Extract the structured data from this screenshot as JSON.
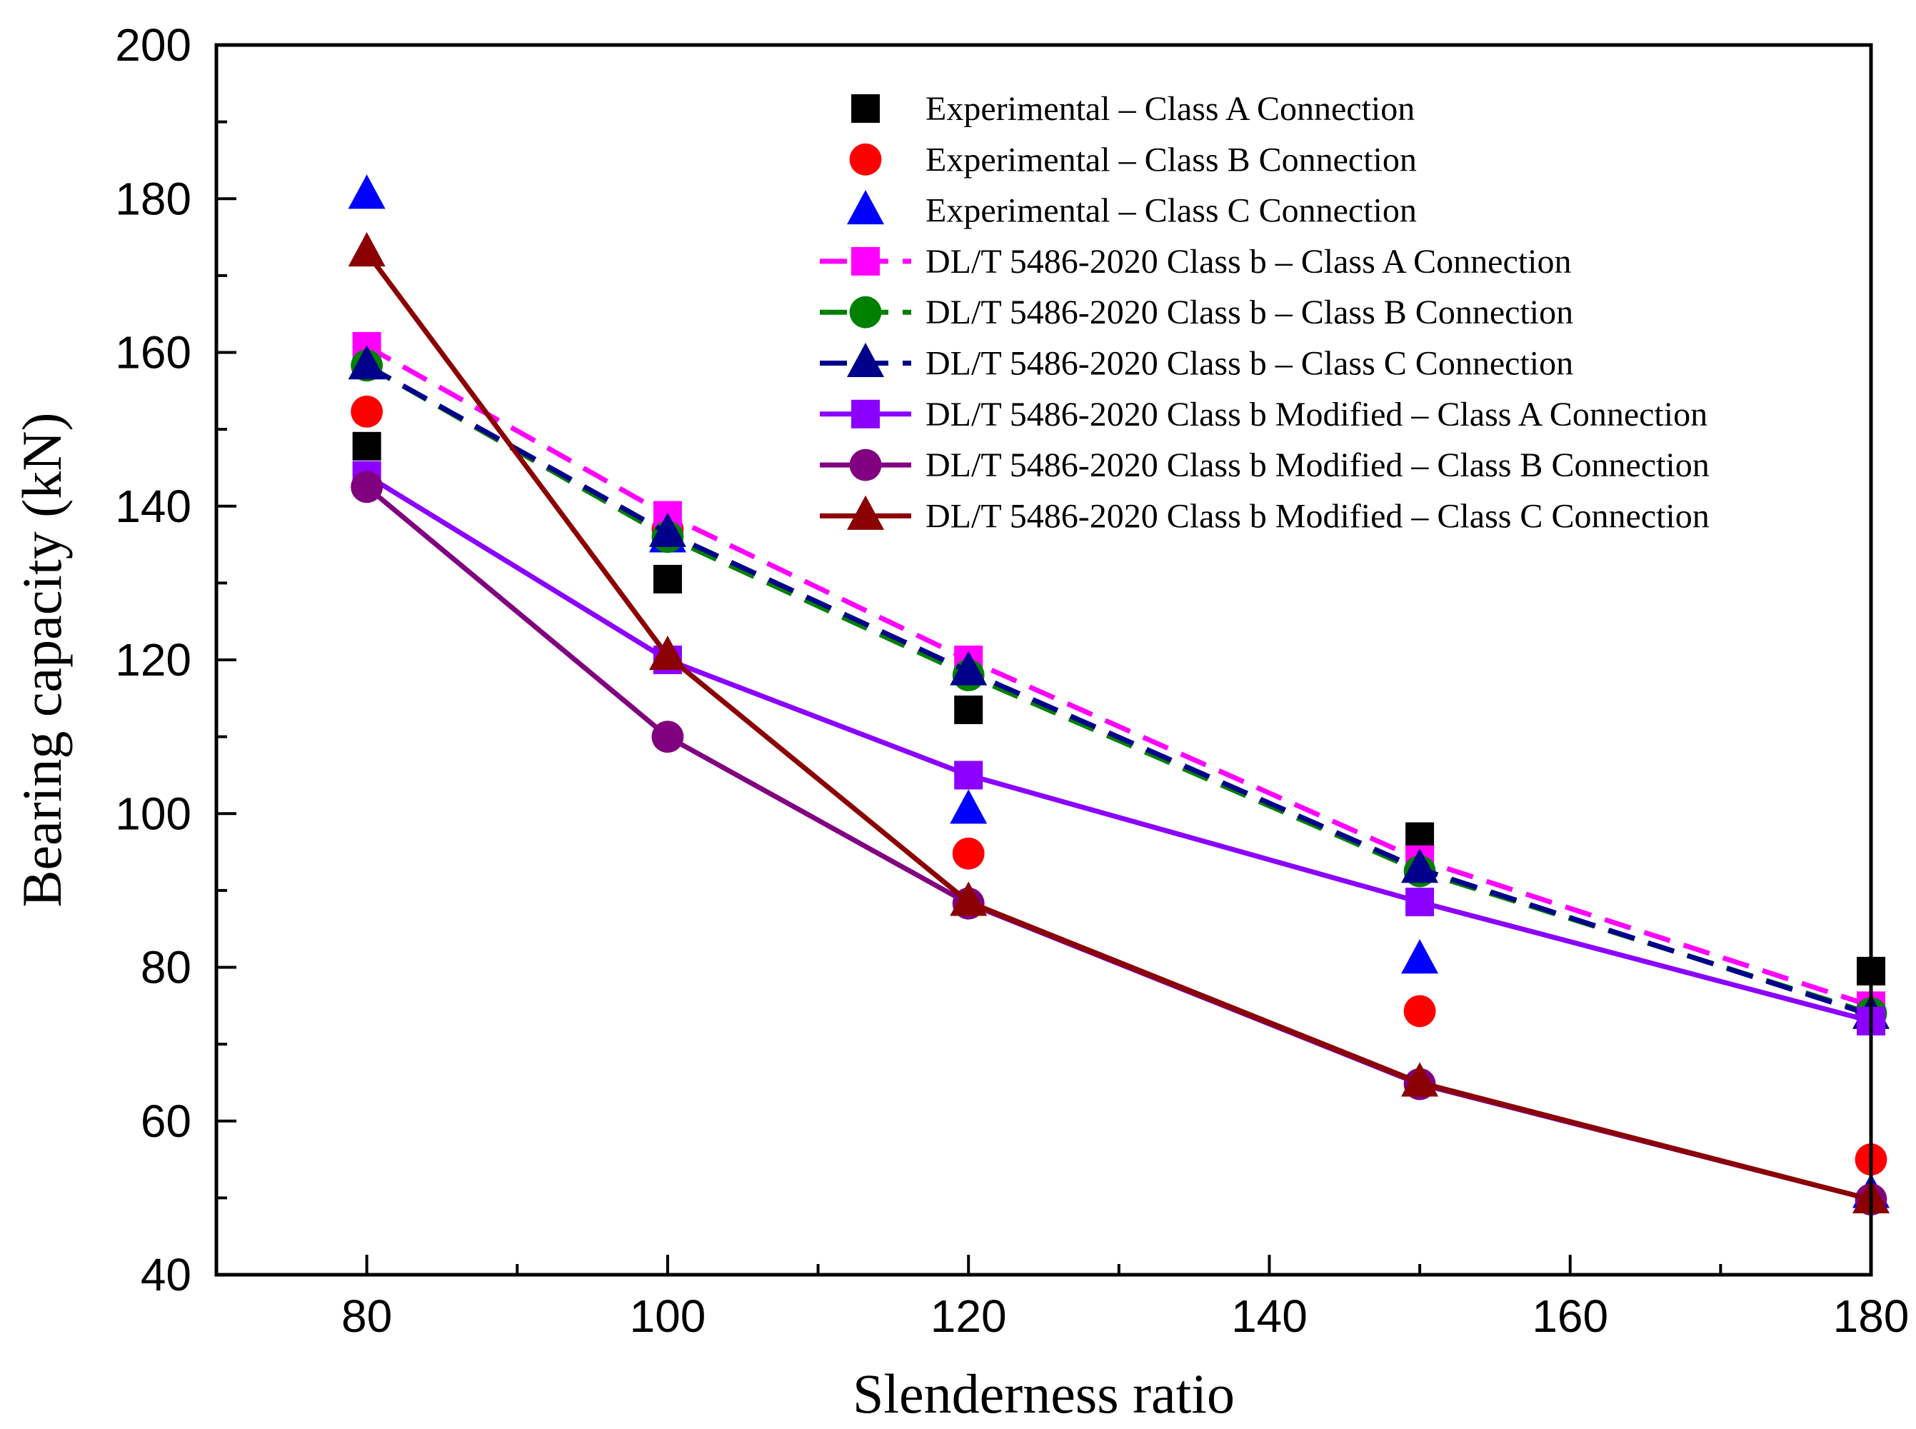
{
  "chart_data": {
    "type": "line",
    "xlabel": "Slenderness ratio",
    "ylabel": "Bearing capacity (kN)",
    "xlim": [
      70,
      180
    ],
    "ylim": [
      40,
      200
    ],
    "xticks": [
      80,
      100,
      120,
      140,
      160,
      180
    ],
    "yticks": [
      40,
      60,
      80,
      100,
      120,
      140,
      160,
      180,
      200
    ],
    "x": [
      80,
      100,
      120,
      150,
      180
    ],
    "legend_position": "top-right",
    "series": [
      {
        "name": "Experimental – Class A Connection",
        "color": "#000000",
        "marker": "square",
        "line": "none",
        "values": [
          147.8,
          130.5,
          113.5,
          97.0,
          79.5
        ]
      },
      {
        "name": "Experimental – Class B Connection",
        "color": "#ff0000",
        "marker": "circle",
        "line": "none",
        "values": [
          152.3,
          137.0,
          94.8,
          74.3,
          55.0
        ]
      },
      {
        "name": "Experimental – Class C Connection",
        "color": "#0000ff",
        "marker": "triangle",
        "line": "none",
        "values": [
          180.5,
          135.8,
          100.5,
          81.0,
          50.5
        ]
      },
      {
        "name": "DL/T 5486-2020 Class b – Class A Connection",
        "color": "#ff00ff",
        "marker": "square",
        "line": "dashed",
        "values": [
          160.8,
          138.8,
          120.0,
          94.0,
          75.0
        ]
      },
      {
        "name": "DL/T 5486-2020 Class b – Class B Connection",
        "color": "#008000",
        "marker": "circle",
        "line": "dashed",
        "values": [
          158.3,
          136.0,
          118.0,
          92.5,
          74.0
        ]
      },
      {
        "name": "DL/T 5486-2020 Class b – Class C Connection",
        "color": "#00008b",
        "marker": "triangle",
        "line": "dashed",
        "values": [
          158.3,
          136.5,
          118.5,
          92.8,
          73.8
        ]
      },
      {
        "name": "DL/T 5486-2020 Class b Modified – Class A Connection",
        "color": "#8b00ff",
        "marker": "square",
        "line": "solid",
        "values": [
          144.0,
          120.0,
          105.0,
          88.5,
          73.0
        ]
      },
      {
        "name": "DL/T 5486-2020 Class b Modified – Class B Connection",
        "color": "#800080",
        "marker": "circle",
        "line": "solid",
        "values": [
          142.5,
          110.0,
          88.3,
          64.8,
          49.8
        ]
      },
      {
        "name": "DL/T 5486-2020 Class b Modified – Class C Connection",
        "color": "#8b0000",
        "marker": "triangle",
        "line": "solid",
        "values": [
          173.0,
          120.5,
          88.5,
          65.0,
          49.8
        ]
      }
    ]
  }
}
